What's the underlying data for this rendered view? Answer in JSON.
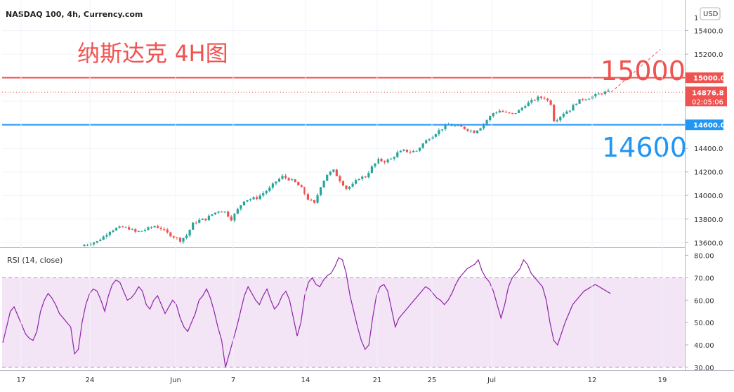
{
  "header": {
    "symbol_title": "NASDAQ 100, 4h, Currency.com"
  },
  "overlay": {
    "title": "纳斯达克 4H图"
  },
  "currency_badge": "USD",
  "colors": {
    "up": "#26a69a",
    "down": "#ef5350",
    "resistance": "#ef5350",
    "support": "#2196f3",
    "rsi": "#8e24aa",
    "rsi_band": "#f3e5f5"
  },
  "chart_data": [
    {
      "type": "candlestick",
      "symbol": "NASDAQ 100",
      "timeframe": "4h",
      "x_ticks": [
        "17",
        "24",
        "Jun",
        "7",
        "14",
        "21",
        "25",
        "Jul",
        "12",
        "19"
      ],
      "y_ticks": [
        13600,
        13800,
        14000,
        14200,
        14400,
        14600,
        14800,
        15000,
        15200,
        15400
      ],
      "y_partial_top_label": "1",
      "ylim": [
        13560,
        15660
      ],
      "last_price": 14876.8,
      "last_price_label": "14876.8",
      "countdown_label": "02:05:06",
      "levels": [
        {
          "value": 15000,
          "tag": "15000.0",
          "annotation": "15000",
          "role": "resistance"
        },
        {
          "value": 14600,
          "tag": "14600.0",
          "annotation": "14600",
          "role": "support"
        }
      ],
      "approx_close_path": [
        [
          0,
          13580
        ],
        [
          4,
          13610
        ],
        [
          6,
          13650
        ],
        [
          8,
          13700
        ],
        [
          10,
          13720
        ],
        [
          12,
          13730
        ],
        [
          14,
          13720
        ],
        [
          16,
          13690
        ],
        [
          18,
          13700
        ],
        [
          20,
          13720
        ],
        [
          22,
          13740
        ],
        [
          24,
          13720
        ],
        [
          26,
          13680
        ],
        [
          28,
          13650
        ],
        [
          30,
          13620
        ],
        [
          32,
          13660
        ],
        [
          34,
          13760
        ],
        [
          36,
          13790
        ],
        [
          38,
          13800
        ],
        [
          40,
          13840
        ],
        [
          42,
          13870
        ],
        [
          44,
          13860
        ],
        [
          46,
          13800
        ],
        [
          48,
          13880
        ],
        [
          50,
          13960
        ],
        [
          52,
          13970
        ],
        [
          54,
          13980
        ],
        [
          56,
          14020
        ],
        [
          58,
          14060
        ],
        [
          60,
          14120
        ],
        [
          62,
          14160
        ],
        [
          64,
          14140
        ],
        [
          66,
          14110
        ],
        [
          68,
          14060
        ],
        [
          70,
          13970
        ],
        [
          72,
          13930
        ],
        [
          74,
          14080
        ],
        [
          76,
          14180
        ],
        [
          78,
          14210
        ],
        [
          80,
          14130
        ],
        [
          82,
          14060
        ],
        [
          84,
          14090
        ],
        [
          86,
          14150
        ],
        [
          88,
          14160
        ],
        [
          90,
          14240
        ],
        [
          92,
          14300
        ],
        [
          94,
          14290
        ],
        [
          96,
          14310
        ],
        [
          98,
          14360
        ],
        [
          100,
          14380
        ],
        [
          102,
          14370
        ],
        [
          104,
          14380
        ],
        [
          106,
          14440
        ],
        [
          108,
          14490
        ],
        [
          110,
          14530
        ],
        [
          112,
          14570
        ],
        [
          114,
          14600
        ],
        [
          116,
          14590
        ],
        [
          118,
          14580
        ],
        [
          120,
          14560
        ],
        [
          122,
          14540
        ],
        [
          124,
          14580
        ],
        [
          126,
          14640
        ],
        [
          128,
          14700
        ],
        [
          130,
          14720
        ],
        [
          132,
          14700
        ],
        [
          134,
          14690
        ],
        [
          136,
          14720
        ],
        [
          138,
          14770
        ],
        [
          140,
          14800
        ],
        [
          142,
          14830
        ],
        [
          144,
          14830
        ],
        [
          146,
          14780
        ],
        [
          147,
          14640
        ],
        [
          148,
          14650
        ],
        [
          150,
          14700
        ],
        [
          152,
          14730
        ],
        [
          154,
          14790
        ],
        [
          156,
          14820
        ],
        [
          158,
          14830
        ],
        [
          160,
          14850
        ],
        [
          162,
          14870
        ],
        [
          164,
          14880
        ]
      ]
    },
    {
      "type": "line",
      "title": "RSI (14, close)",
      "y_ticks": [
        30,
        40,
        50,
        60,
        70,
        80
      ],
      "y_tick_labels": [
        "30.00",
        "40.00",
        "50.00",
        "60.00",
        "70.00",
        "80.00"
      ],
      "ylim": [
        29,
        83
      ],
      "bands": [
        30,
        70
      ],
      "values": [
        41,
        48,
        55,
        57,
        53,
        49,
        45,
        43,
        42,
        46,
        55,
        60,
        63,
        61,
        58,
        54,
        52,
        50,
        48,
        36,
        38,
        50,
        58,
        63,
        65,
        64,
        60,
        55,
        62,
        67,
        69,
        68,
        64,
        60,
        61,
        63,
        66,
        64,
        58,
        56,
        60,
        62,
        58,
        54,
        57,
        60,
        58,
        52,
        48,
        46,
        50,
        54,
        60,
        62,
        65,
        61,
        55,
        48,
        42,
        30,
        36,
        42,
        48,
        55,
        62,
        66,
        63,
        60,
        58,
        62,
        65,
        60,
        56,
        58,
        62,
        64,
        60,
        52,
        44,
        50,
        62,
        68,
        70,
        67,
        66,
        69,
        71,
        72,
        75,
        79,
        78,
        72,
        62,
        55,
        48,
        42,
        38,
        40,
        52,
        62,
        66,
        67,
        64,
        56,
        48,
        52,
        54,
        56,
        58,
        60,
        62,
        64,
        66,
        65,
        63,
        61,
        60,
        58,
        60,
        63,
        67,
        70,
        72,
        74,
        75,
        76,
        78,
        73,
        70,
        68,
        64,
        58,
        52,
        58,
        66,
        70,
        72,
        74,
        78,
        76,
        72,
        70,
        68,
        66,
        60,
        50,
        42,
        40,
        45,
        50,
        54,
        58,
        60,
        62,
        64,
        65,
        66,
        67,
        66,
        65,
        64,
        63
      ]
    }
  ]
}
